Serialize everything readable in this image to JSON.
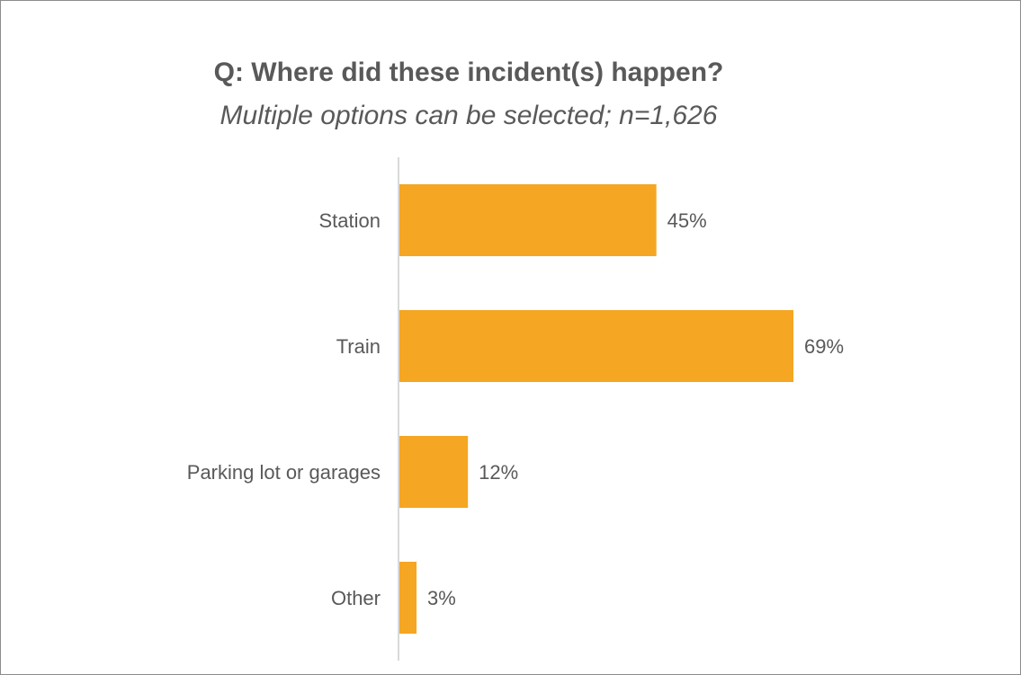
{
  "chart_data": {
    "type": "hbar",
    "title": "Q: Where did these incident(s) happen?",
    "subtitle": "Multiple options can be selected; n=1,626",
    "categories": [
      "Station",
      "Train",
      "Parking lot or garages",
      "Other"
    ],
    "values": [
      45,
      69,
      12,
      3
    ],
    "value_labels": [
      "45%",
      "69%",
      "12%",
      "3%"
    ],
    "color": "#f5a623"
  }
}
